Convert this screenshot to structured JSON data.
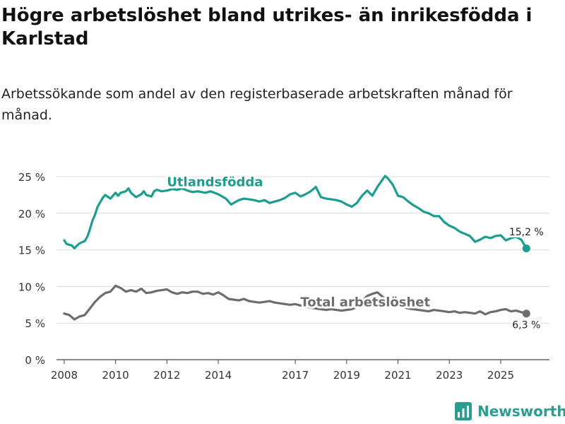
{
  "header": {
    "title": "Högre arbetslöshet bland utrikes- än inrikesfödda i Karlstad",
    "subtitle": "Arbetssökande som andel av den registerbaserade arbetskraften månad för månad."
  },
  "brand": {
    "name": "Newsworthy"
  },
  "colors": {
    "foreign": "#1a9e8e",
    "total": "#6d6d70",
    "grid": "#dcdcdc",
    "axis": "#333333",
    "brand": "#2a9d90"
  },
  "chart_data": {
    "type": "line",
    "title": "Högre arbetslöshet bland utrikes- än inrikesfödda i Karlstad",
    "subtitle": "Arbetssökande som andel av den registerbaserade arbetskraften månad för månad.",
    "xlabel": "",
    "ylabel": "",
    "xlim": [
      2007.7,
      2026.9
    ],
    "ylim": [
      0,
      25
    ],
    "y_ticks": [
      0,
      5,
      10,
      15,
      20,
      25
    ],
    "y_tick_labels": [
      "0 %",
      "5 %",
      "10 %",
      "15 %",
      "20 %",
      "25 %"
    ],
    "x_ticks": [
      2008,
      2010,
      2012,
      2014,
      2017,
      2019,
      2021,
      2023,
      2025
    ],
    "x_tick_labels": [
      "2008",
      "2010",
      "2012",
      "2014",
      "2017",
      "2019",
      "2021",
      "2023",
      "2025"
    ],
    "grid": true,
    "series": [
      {
        "name": "Utlandsfödda",
        "label": "Utlandsfödda",
        "end_label": "15,2 %",
        "color": "#1a9e8e",
        "x": [
          2008.0,
          2008.1,
          2008.3,
          2008.4,
          2008.5,
          2008.6,
          2008.8,
          2008.9,
          2009.0,
          2009.1,
          2009.2,
          2009.3,
          2009.5,
          2009.6,
          2009.8,
          2010.0,
          2010.1,
          2010.2,
          2010.4,
          2010.5,
          2010.6,
          2010.8,
          2011.0,
          2011.1,
          2011.2,
          2011.4,
          2011.5,
          2011.6,
          2011.8,
          2012.0,
          2012.2,
          2012.4,
          2012.6,
          2012.8,
          2013.0,
          2013.2,
          2013.5,
          2013.7,
          2014.0,
          2014.3,
          2014.5,
          2014.6,
          2014.8,
          2015.0,
          2015.2,
          2015.4,
          2015.6,
          2015.8,
          2016.0,
          2016.2,
          2016.4,
          2016.6,
          2016.8,
          2017.0,
          2017.2,
          2017.4,
          2017.6,
          2017.8,
          2018.0,
          2018.2,
          2018.4,
          2018.6,
          2018.8,
          2019.0,
          2019.2,
          2019.4,
          2019.6,
          2019.8,
          2020.0,
          2020.2,
          2020.4,
          2020.5,
          2020.6,
          2020.8,
          2021.0,
          2021.2,
          2021.4,
          2021.6,
          2021.8,
          2022.0,
          2022.2,
          2022.4,
          2022.6,
          2022.8,
          2023.0,
          2023.2,
          2023.4,
          2023.6,
          2023.8,
          2024.0,
          2024.2,
          2024.4,
          2024.6,
          2024.8,
          2025.0,
          2025.2,
          2025.4,
          2025.6,
          2025.8,
          2026.0
        ],
        "values": [
          16.3,
          15.8,
          15.6,
          15.2,
          15.6,
          15.9,
          16.2,
          16.8,
          17.8,
          19.0,
          19.8,
          20.9,
          22.1,
          22.5,
          22.0,
          22.8,
          22.4,
          22.8,
          23.0,
          23.4,
          22.8,
          22.2,
          22.6,
          23.0,
          22.5,
          22.3,
          23.0,
          23.2,
          23.0,
          23.1,
          23.3,
          23.2,
          23.4,
          23.1,
          22.9,
          23.0,
          22.8,
          23.0,
          22.6,
          22.0,
          21.2,
          21.4,
          21.8,
          22.0,
          21.9,
          21.8,
          21.6,
          21.8,
          21.4,
          21.6,
          21.8,
          22.1,
          22.6,
          22.8,
          22.3,
          22.6,
          23.0,
          23.6,
          22.2,
          22.0,
          21.9,
          21.8,
          21.6,
          21.2,
          20.9,
          21.4,
          22.4,
          23.1,
          22.4,
          23.6,
          24.6,
          25.1,
          24.8,
          23.9,
          22.4,
          22.2,
          21.6,
          21.1,
          20.7,
          20.2,
          20.0,
          19.6,
          19.6,
          18.8,
          18.3,
          18.0,
          17.5,
          17.2,
          16.9,
          16.1,
          16.4,
          16.8,
          16.6,
          16.9,
          17.0,
          16.3,
          16.6,
          16.8,
          16.4,
          15.2
        ]
      },
      {
        "name": "Total arbetslöshet",
        "label": "Total arbetslöshet",
        "end_label": "6,3 %",
        "color": "#6d6d70",
        "x": [
          2008.0,
          2008.2,
          2008.4,
          2008.6,
          2008.8,
          2009.0,
          2009.2,
          2009.4,
          2009.6,
          2009.8,
          2010.0,
          2010.2,
          2010.4,
          2010.6,
          2010.8,
          2011.0,
          2011.2,
          2011.4,
          2011.6,
          2011.8,
          2012.0,
          2012.2,
          2012.4,
          2012.6,
          2012.8,
          2013.0,
          2013.2,
          2013.4,
          2013.6,
          2013.8,
          2014.0,
          2014.2,
          2014.4,
          2014.6,
          2014.8,
          2015.0,
          2015.2,
          2015.4,
          2015.6,
          2015.8,
          2016.0,
          2016.2,
          2016.4,
          2016.6,
          2016.8,
          2017.0,
          2017.2,
          2017.4,
          2017.6,
          2017.8,
          2018.0,
          2018.2,
          2018.4,
          2018.6,
          2018.8,
          2019.0,
          2019.2,
          2019.4,
          2019.6,
          2019.8,
          2020.0,
          2020.2,
          2020.4,
          2020.6,
          2020.8,
          2021.0,
          2021.2,
          2021.4,
          2021.6,
          2021.8,
          2022.0,
          2022.2,
          2022.4,
          2022.6,
          2022.8,
          2023.0,
          2023.2,
          2023.4,
          2023.6,
          2023.8,
          2024.0,
          2024.2,
          2024.4,
          2024.6,
          2024.8,
          2025.0,
          2025.2,
          2025.4,
          2025.6,
          2025.8,
          2026.0
        ],
        "values": [
          6.3,
          6.1,
          5.5,
          5.9,
          6.1,
          7.0,
          7.9,
          8.6,
          9.1,
          9.3,
          10.1,
          9.8,
          9.3,
          9.5,
          9.3,
          9.7,
          9.1,
          9.2,
          9.4,
          9.5,
          9.6,
          9.2,
          9.0,
          9.2,
          9.1,
          9.3,
          9.3,
          9.0,
          9.1,
          8.9,
          9.2,
          8.8,
          8.3,
          8.2,
          8.1,
          8.3,
          8.0,
          7.9,
          7.8,
          7.9,
          8.0,
          7.8,
          7.7,
          7.6,
          7.5,
          7.6,
          7.4,
          7.3,
          7.1,
          7.0,
          6.9,
          6.8,
          6.9,
          6.8,
          6.7,
          6.8,
          6.9,
          7.2,
          8.0,
          8.7,
          9.0,
          9.2,
          8.6,
          7.9,
          7.5,
          7.4,
          7.2,
          7.0,
          6.9,
          6.8,
          6.7,
          6.6,
          6.8,
          6.7,
          6.6,
          6.5,
          6.6,
          6.4,
          6.5,
          6.4,
          6.3,
          6.6,
          6.2,
          6.5,
          6.6,
          6.8,
          6.9,
          6.6,
          6.7,
          6.5,
          6.3
        ]
      }
    ]
  }
}
